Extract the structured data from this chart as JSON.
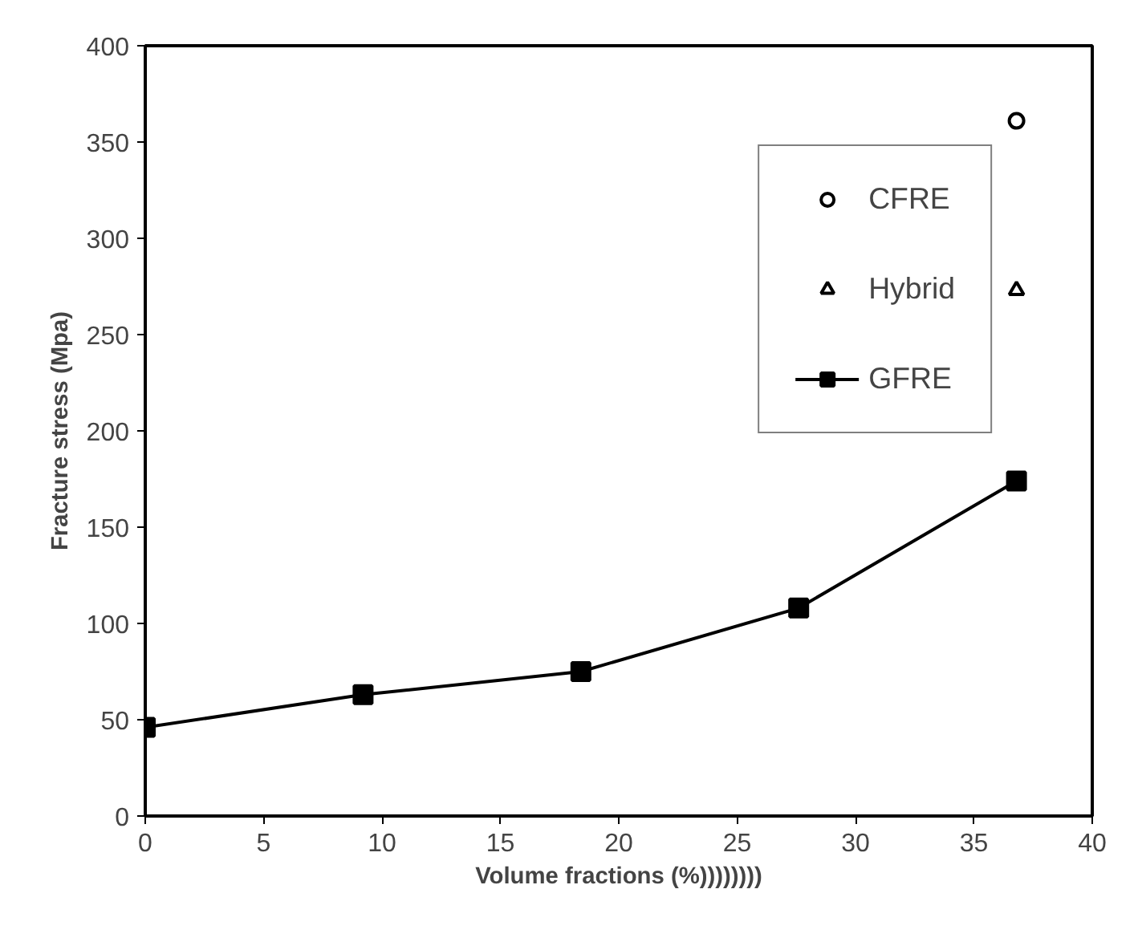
{
  "chart_data": {
    "type": "line",
    "xlabel": "Volume fractions (%))))))))",
    "ylabel": "Fracture stress (Mpa)",
    "xlim": [
      0,
      40
    ],
    "xticks": [
      0,
      5,
      10,
      15,
      20,
      25,
      30,
      35,
      40
    ],
    "ylim": [
      0,
      400
    ],
    "yticks": [
      0,
      50,
      100,
      150,
      200,
      250,
      300,
      350,
      400
    ],
    "grid": false,
    "legend": "top right",
    "series": [
      {
        "name": "CFRE",
        "type": "scatter",
        "marker": "circle",
        "color": "#000000",
        "x": [
          36.8
        ],
        "values": [
          361
        ]
      },
      {
        "name": "Hybrid",
        "type": "scatter",
        "marker": "triangle",
        "color": "#000000",
        "x": [
          36.8
        ],
        "values": [
          273
        ]
      },
      {
        "name": "GFRE",
        "marker": "square",
        "color": "#000000",
        "x": [
          0,
          9.2,
          18.4,
          27.6,
          36.8
        ],
        "values": [
          46,
          63,
          75,
          108,
          174
        ]
      }
    ]
  }
}
